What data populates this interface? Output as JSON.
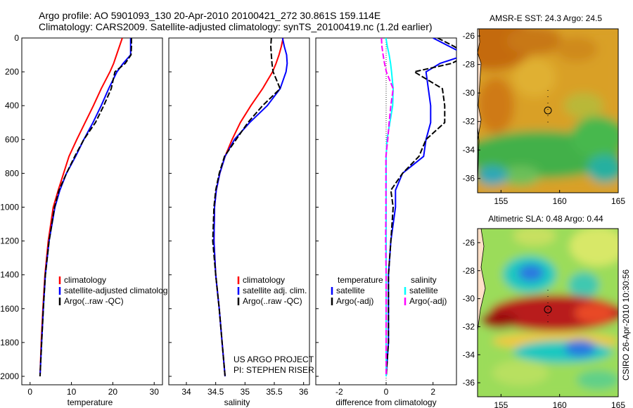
{
  "header": {
    "line1": "Argo profile: AO 5901093_130 20-Apr-2010 20100421_272 30.861S 159.114E",
    "line2": "Climatology: CARS2009. Satellite-adjusted climatology: synTS_20100419.nc (1.2d earlier)"
  },
  "side_label": "CSIRO 26-Apr-2010 10:30:56",
  "credit": {
    "line1": "US ARGO PROJECT",
    "line2": "PI: STEPHEN RISER"
  },
  "colors": {
    "climatology": "#ff0000",
    "satellite": "#0000ff",
    "argo": "#000000",
    "sat_salinity": "#00ffff",
    "argo_salinity": "#ff00ff"
  },
  "chart_data": [
    {
      "type": "line",
      "xlabel": "temperature",
      "xlim": [
        -2,
        32
      ],
      "xticks": [
        0,
        10,
        20,
        30
      ],
      "ylim": [
        2050,
        0
      ],
      "yticks": [
        0,
        200,
        400,
        600,
        800,
        1000,
        1200,
        1400,
        1600,
        1800,
        2000
      ],
      "depth": [
        0,
        50,
        100,
        150,
        200,
        300,
        400,
        500,
        600,
        700,
        800,
        900,
        1000,
        1200,
        1400,
        1600,
        1800,
        2000
      ],
      "legend": [
        "climatology",
        "satellite-adjusted climatolog",
        "Argo(..raw -QC)"
      ],
      "series": [
        {
          "name": "climatology",
          "color": "#ff0000",
          "values": [
            22.3,
            21.6,
            20.9,
            20.2,
            19.3,
            17.2,
            15.3,
            13.3,
            11.3,
            9.4,
            8.1,
            6.8,
            5.6,
            4.4,
            3.6,
            3.1,
            2.7,
            2.4
          ]
        },
        {
          "name": "satellite-adjusted climatolog",
          "color": "#0000ff",
          "values": [
            24.3,
            24.3,
            24.3,
            22.5,
            21.0,
            19.0,
            17.2,
            15.2,
            13.0,
            11.0,
            8.8,
            7.2,
            6.0,
            4.6,
            3.7,
            3.2,
            2.8,
            2.4
          ]
        },
        {
          "name": "Argo(..raw -QC)",
          "color": "#000000",
          "values": [
            24.5,
            24.5,
            24.4,
            23.0,
            20.5,
            19.6,
            17.8,
            15.8,
            13.0,
            10.8,
            8.8,
            7.0,
            5.9,
            4.6,
            3.7,
            3.2,
            2.8,
            2.4
          ]
        }
      ]
    },
    {
      "type": "line",
      "xlabel": "salinity",
      "xlim": [
        33.7,
        36.1
      ],
      "xticks": [
        34,
        34.5,
        35,
        35.5,
        36
      ],
      "ylim": [
        2050,
        0
      ],
      "depth": [
        0,
        50,
        100,
        150,
        200,
        300,
        400,
        500,
        600,
        700,
        800,
        900,
        1000,
        1200,
        1400,
        1600,
        1800,
        2000
      ],
      "legend": [
        "climatology",
        "satellite adj. clim.",
        "Argo(..raw -QC)"
      ],
      "series": [
        {
          "name": "climatology",
          "color": "#ff0000",
          "values": [
            35.65,
            35.62,
            35.58,
            35.53,
            35.47,
            35.3,
            35.1,
            34.92,
            34.78,
            34.66,
            34.57,
            34.51,
            34.48,
            34.47,
            34.5,
            34.56,
            34.61,
            34.66
          ]
        },
        {
          "name": "satellite adj. clim.",
          "color": "#0000ff",
          "values": [
            35.64,
            35.67,
            35.71,
            35.72,
            35.7,
            35.6,
            35.38,
            35.08,
            34.82,
            34.66,
            34.57,
            34.51,
            34.48,
            34.47,
            34.5,
            34.56,
            34.61,
            34.66
          ]
        },
        {
          "name": "Argo(..raw -QC)",
          "color": "#000000",
          "values": [
            35.45,
            35.44,
            35.45,
            35.46,
            35.48,
            35.6,
            35.3,
            35.05,
            34.85,
            34.65,
            34.56,
            34.5,
            34.47,
            34.45,
            34.5,
            34.56,
            34.61,
            34.66
          ]
        }
      ]
    },
    {
      "type": "line",
      "xlabel": "difference from climatology",
      "xlim": [
        -3,
        3
      ],
      "xticks": [
        -2,
        0,
        2
      ],
      "ylim": [
        2050,
        0
      ],
      "depth": [
        0,
        50,
        100,
        150,
        200,
        300,
        400,
        500,
        600,
        700,
        800,
        900,
        1000,
        1200,
        1400,
        1600,
        1800,
        2000
      ],
      "legend_groups": [
        "temperature",
        "salinity"
      ],
      "legend": [
        "satellite",
        "Argo(-adj)",
        "satellite",
        "Argo(-adj)"
      ],
      "series": [
        {
          "name": "satellite",
          "group": "temperature",
          "color": "#0000ff",
          "values": [
            2.0,
            2.7,
            3.4,
            2.3,
            1.7,
            1.8,
            1.9,
            1.9,
            1.7,
            1.6,
            0.7,
            0.4,
            0.4,
            0.2,
            0.1,
            0.1,
            0.1,
            0.0
          ]
        },
        {
          "name": "Argo(-adj)",
          "group": "temperature",
          "color": "#000000",
          "values": [
            2.2,
            2.9,
            3.5,
            2.8,
            1.2,
            2.4,
            2.5,
            2.5,
            1.7,
            1.4,
            0.7,
            0.2,
            0.3,
            0.2,
            0.1,
            0.1,
            0.1,
            0.0
          ]
        },
        {
          "name": "satellite",
          "group": "salinity",
          "color": "#00ffff",
          "values": [
            -0.01,
            0.05,
            0.13,
            0.19,
            0.23,
            0.3,
            0.28,
            0.16,
            0.04,
            0.0,
            0.0,
            0.0,
            0.0,
            0.0,
            0.0,
            0.0,
            0.0,
            0.0
          ]
        },
        {
          "name": "Argo(-adj)",
          "group": "salinity",
          "color": "#ff00ff",
          "values": [
            -0.2,
            -0.18,
            -0.13,
            -0.07,
            0.01,
            0.3,
            0.2,
            0.13,
            0.07,
            -0.01,
            -0.01,
            -0.01,
            -0.01,
            -0.02,
            0.0,
            0.0,
            0.0,
            0.0
          ]
        }
      ]
    },
    {
      "type": "heatmap",
      "title": "AMSR-E SST: 24.3 Argo: 24.5",
      "xlim": [
        153,
        165
      ],
      "xticks": [
        155,
        160,
        165
      ],
      "ylim": [
        -37,
        -25.5
      ],
      "yticks": [
        -26,
        -28,
        -30,
        -32,
        -34,
        -36
      ],
      "argo_position": [
        159.1,
        -30.9
      ]
    },
    {
      "type": "heatmap",
      "title": "Altimetric SLA: 0.48 Argo: 0.44",
      "xlim": [
        153,
        165
      ],
      "xticks": [
        155,
        160,
        165
      ],
      "ylim": [
        -37,
        -25
      ],
      "yticks": [
        -26,
        -28,
        -30,
        -32,
        -34,
        -36
      ],
      "argo_position": [
        159.1,
        -30.9
      ]
    }
  ]
}
